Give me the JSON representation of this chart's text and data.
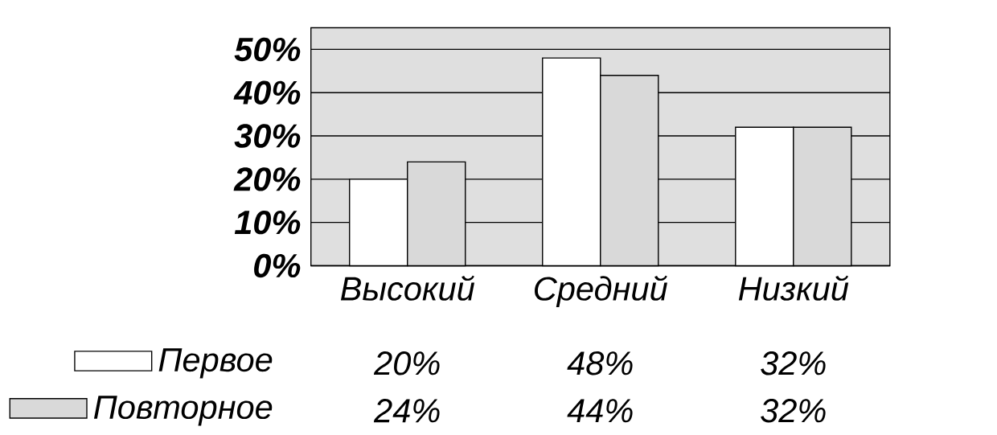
{
  "chart_data": {
    "type": "bar",
    "categories": [
      "Высокий",
      "Средний",
      "Низкий"
    ],
    "series": [
      {
        "name": "Первое",
        "color": "#ffffff",
        "values": [
          20,
          48,
          32
        ],
        "value_labels": [
          "20%",
          "48%",
          "32%"
        ]
      },
      {
        "name": "Повторное",
        "color": "#d9d9d9",
        "values": [
          24,
          44,
          32
        ],
        "value_labels": [
          "24%",
          "44%",
          "32%"
        ]
      }
    ],
    "ylim": [
      0,
      55
    ],
    "yticks": [
      {
        "value": 0,
        "label": "0%"
      },
      {
        "value": 10,
        "label": "10%"
      },
      {
        "value": 20,
        "label": "20%"
      },
      {
        "value": 30,
        "label": "30%"
      },
      {
        "value": 40,
        "label": "40%"
      },
      {
        "value": 50,
        "label": "50%"
      }
    ],
    "grid": "y",
    "legend": "bottom",
    "data_labels": true
  }
}
